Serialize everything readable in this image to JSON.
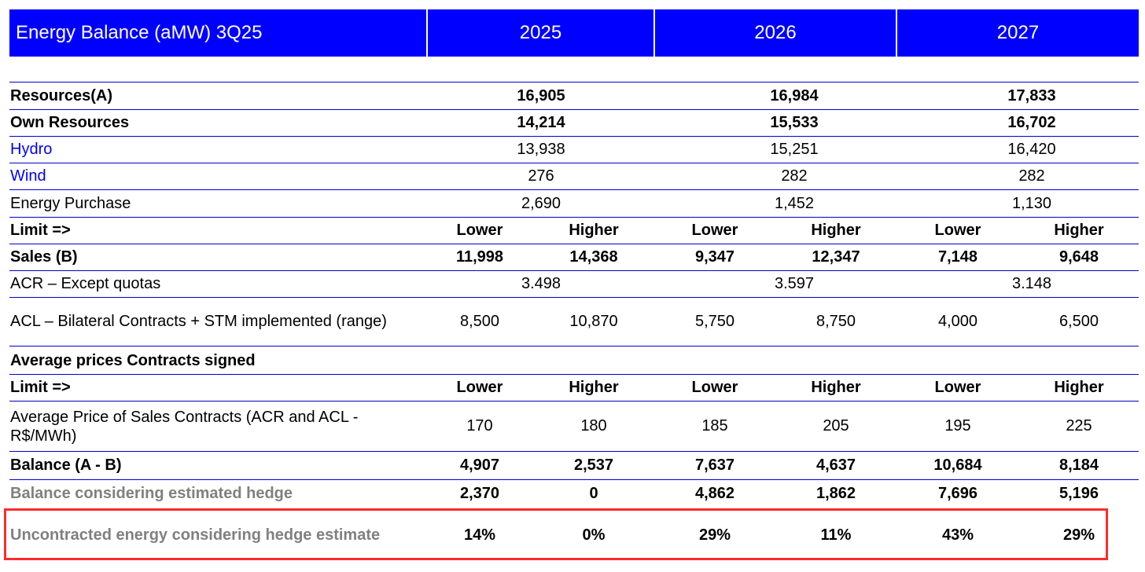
{
  "header": {
    "title": "Energy Balance (aMW) 3Q25",
    "years": [
      "2025",
      "2026",
      "2027"
    ]
  },
  "rows": {
    "resources": {
      "label": "Resources(A)",
      "values": [
        "16,905",
        "16,984",
        "17,833"
      ]
    },
    "own_resources": {
      "label": "Own Resources",
      "values": [
        "14,214",
        "15,533",
        "16,702"
      ]
    },
    "hydro": {
      "label": "Hydro",
      "values": [
        "13,938",
        "15,251",
        "16,420"
      ]
    },
    "wind": {
      "label": "Wind",
      "values": [
        "276",
        "282",
        "282"
      ]
    },
    "energy_purchase": {
      "label": "Energy Purchase",
      "values": [
        "2,690",
        "1,452",
        "1,130"
      ]
    },
    "limit1": {
      "label": "Limit =>",
      "values": [
        "Lower",
        "Higher",
        "Lower",
        "Higher",
        "Lower",
        "Higher"
      ]
    },
    "sales": {
      "label": "Sales (B)",
      "values": [
        "11,998",
        "14,368",
        "9,347",
        "12,347",
        "7,148",
        "9,648"
      ]
    },
    "acr": {
      "label": "ACR – Except quotas",
      "values": [
        "3.498",
        "3.597",
        "3.148"
      ]
    },
    "acl": {
      "label": "ACL – Bilateral Contracts + STM implemented (range)",
      "values": [
        "8,500",
        "10,870",
        "5,750",
        "8,750",
        "4,000",
        "6,500"
      ]
    },
    "avg_prices_header": {
      "label": "Average prices Contracts signed"
    },
    "limit2": {
      "label": "Limit =>",
      "values": [
        "Lower",
        "Higher",
        "Lower",
        "Higher",
        "Lower",
        "Higher"
      ]
    },
    "avg_price": {
      "label": "Average Price of Sales Contracts (ACR and ACL - R$/MWh)",
      "values": [
        "170",
        "180",
        "185",
        "205",
        "195",
        "225"
      ]
    },
    "balance": {
      "label": "Balance (A - B)",
      "values": [
        "4,907",
        "2,537",
        "7,637",
        "4,637",
        "10,684",
        "8,184"
      ]
    },
    "balance_hedge": {
      "label": "Balance considering estimated hedge",
      "values": [
        "2,370",
        "0",
        "4,862",
        "1,862",
        "7,696",
        "5,196"
      ]
    },
    "uncontracted": {
      "label": "Uncontracted energy considering hedge estimate",
      "values": [
        "14%",
        "0%",
        "29%",
        "11%",
        "43%",
        "29%"
      ]
    }
  },
  "colors": {
    "header_bg": "#0000ff",
    "rule": "#0000cc",
    "highlight_border": "#ff2b2b",
    "gray_text": "#808080"
  }
}
